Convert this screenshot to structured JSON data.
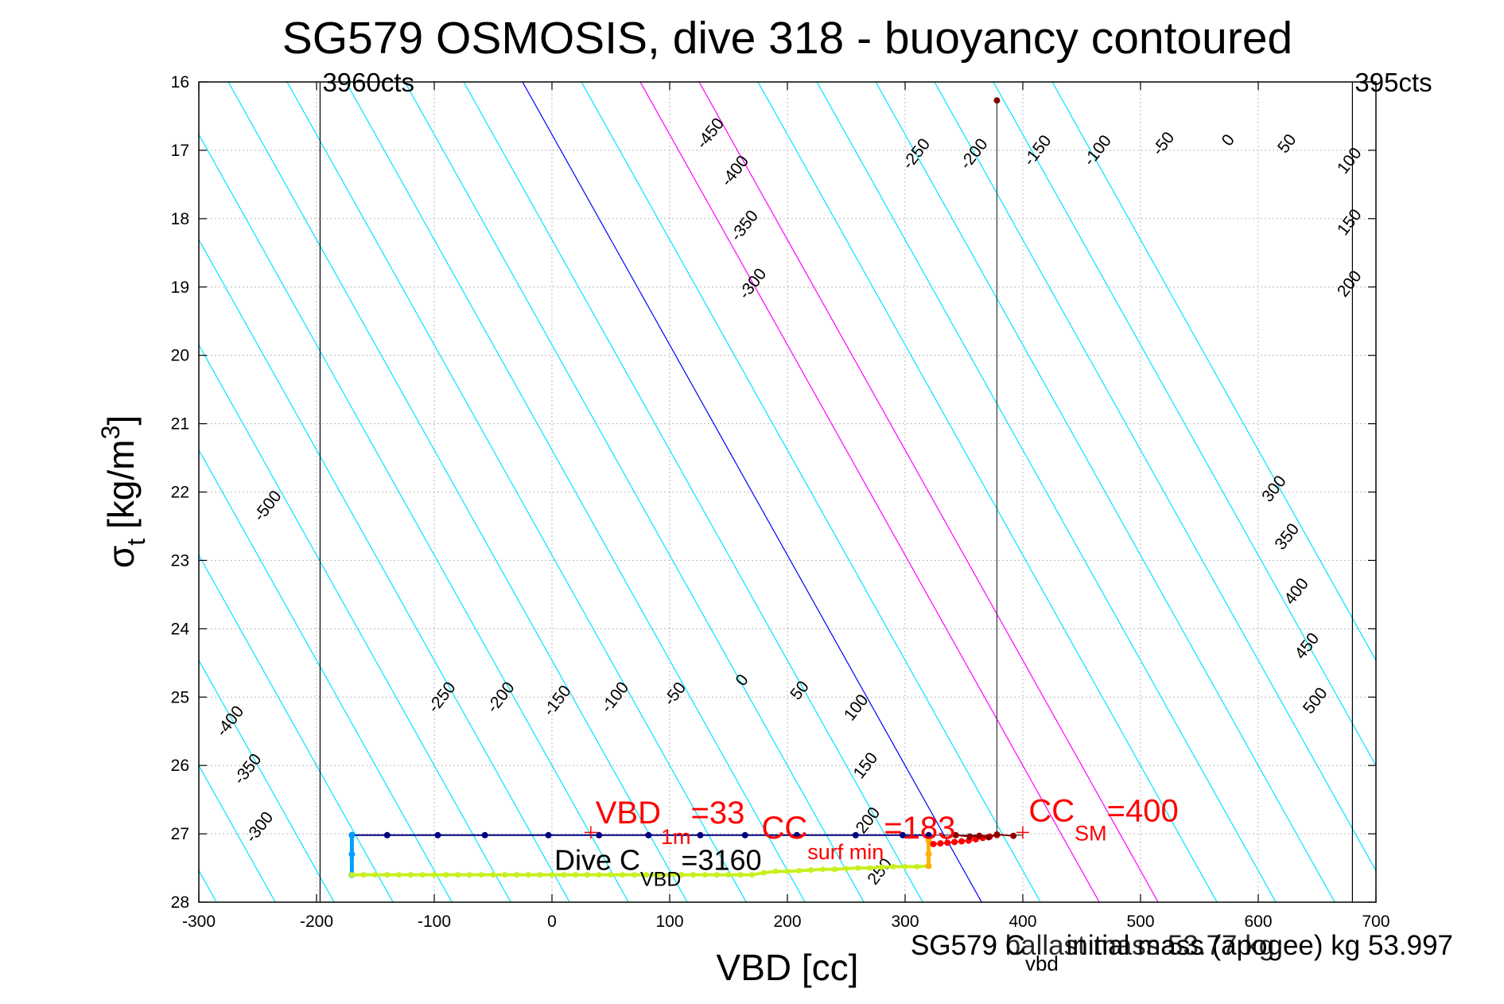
{
  "chart_data": {
    "type": "line",
    "title": "SG579 OSMOSIS, dive 318 - buoyancy contoured",
    "xlabel": "VBD [cc]",
    "ylabel_symbol": "σ",
    "ylabel_sub": "t",
    "ylabel_unit": "[kg/m",
    "ylabel_sup": "3",
    "ylabel_close": "]",
    "xlim": [
      -300,
      700
    ],
    "ylim": [
      16,
      28
    ],
    "y_reversed": true,
    "grid": true,
    "x_ticks": [
      -300,
      -200,
      -100,
      0,
      100,
      200,
      300,
      400,
      500,
      600,
      700
    ],
    "y_ticks": [
      16,
      17,
      18,
      19,
      20,
      21,
      22,
      23,
      24,
      25,
      26,
      27,
      28
    ],
    "colors": {
      "contour": "#00e5ff",
      "zero_contour": "#0000ff",
      "magenta_contours": "#ff00ff",
      "annotation": "#ff0000",
      "apogee_line": "#7a0000"
    },
    "contour_slope_vbd_per_sigma": 32.5,
    "contour_spacing_vbd": 50,
    "contour_offsets": [
      -975,
      -925,
      -875,
      -825,
      -775,
      -725,
      -675,
      -625,
      -575,
      -525,
      -475,
      -425,
      -375,
      -325,
      -275,
      -225,
      -175,
      -125,
      -75,
      -25,
      25,
      75,
      125,
      175,
      225,
      275,
      325,
      375,
      425
    ],
    "zero_contour_offset": -25,
    "magenta_contour_offsets": [
      75,
      125
    ],
    "contour_labels": [
      {
        "text": "-450",
        "vbd": 138,
        "sigma": 16.8
      },
      {
        "text": "-400",
        "vbd": 159,
        "sigma": 17.35
      },
      {
        "text": "-350",
        "vbd": 167,
        "sigma": 18.15
      },
      {
        "text": "-300",
        "vbd": 174,
        "sigma": 19.0
      },
      {
        "text": "-250",
        "vbd": 313,
        "sigma": 17.1
      },
      {
        "text": "-200",
        "vbd": 362,
        "sigma": 17.1
      },
      {
        "text": "-150",
        "vbd": 416,
        "sigma": 17.05
      },
      {
        "text": "-100",
        "vbd": 467,
        "sigma": 17.05
      },
      {
        "text": "-50",
        "vbd": 523,
        "sigma": 16.95
      },
      {
        "text": "0",
        "vbd": 578,
        "sigma": 16.9
      },
      {
        "text": "50",
        "vbd": 628,
        "sigma": 16.95
      },
      {
        "text": "100",
        "vbd": 681,
        "sigma": 17.2
      },
      {
        "text": "150",
        "vbd": 681,
        "sigma": 18.1
      },
      {
        "text": "200",
        "vbd": 681,
        "sigma": 19.0
      },
      {
        "text": "-500",
        "vbd": -238,
        "sigma": 22.25
      },
      {
        "text": "300",
        "vbd": 617,
        "sigma": 22.0
      },
      {
        "text": "350",
        "vbd": 628,
        "sigma": 22.7
      },
      {
        "text": "400",
        "vbd": 636,
        "sigma": 23.5
      },
      {
        "text": "450",
        "vbd": 645,
        "sigma": 24.3
      },
      {
        "text": "500",
        "vbd": 652,
        "sigma": 25.1
      },
      {
        "text": "-400",
        "vbd": -270,
        "sigma": 25.4
      },
      {
        "text": "-350",
        "vbd": -255,
        "sigma": 26.1
      },
      {
        "text": "-300",
        "vbd": -245,
        "sigma": 26.95
      },
      {
        "text": "-250",
        "vbd": -90,
        "sigma": 25.05
      },
      {
        "text": "-200",
        "vbd": -40,
        "sigma": 25.05
      },
      {
        "text": "-150",
        "vbd": 8,
        "sigma": 25.1
      },
      {
        "text": "-100",
        "vbd": 57,
        "sigma": 25.05
      },
      {
        "text": "-50",
        "vbd": 108,
        "sigma": 25.0
      },
      {
        "text": "0",
        "vbd": 165,
        "sigma": 24.8
      },
      {
        "text": "50",
        "vbd": 214,
        "sigma": 24.95
      },
      {
        "text": "100",
        "vbd": 262,
        "sigma": 25.2
      },
      {
        "text": "150",
        "vbd": 270,
        "sigma": 26.05
      },
      {
        "text": "200",
        "vbd": 272,
        "sigma": 26.85
      },
      {
        "text": "250",
        "vbd": 282,
        "sigma": 27.6
      }
    ],
    "count_markers": [
      {
        "text": "3960cts",
        "vbd": -197
      },
      {
        "text": "395cts",
        "vbd": 680
      }
    ],
    "series": [
      {
        "x": [
          -170,
          -140,
          -97,
          -57,
          -3,
          40,
          82,
          126,
          164,
          208,
          258,
          298,
          320
        ],
        "y": [
          27.02,
          27.02,
          27.02,
          27.02,
          27.02,
          27.02,
          27.02,
          27.02,
          27.02,
          27.02,
          27.02,
          27.02,
          27.02
        ],
        "color": "#000080"
      },
      {
        "x": [
          -170,
          -170,
          -170
        ],
        "y": [
          27.02,
          27.3,
          27.6
        ],
        "color": "#00a0ff"
      },
      {
        "x": [
          -170,
          -160,
          -150,
          -140,
          -130,
          -120,
          -110,
          -100,
          -90,
          -80,
          -70,
          -60,
          -50,
          -40,
          -30,
          -20,
          -10,
          0,
          10,
          20,
          30,
          40,
          50,
          60,
          70,
          80,
          90,
          100,
          110,
          120,
          130,
          140,
          150,
          160,
          170,
          180,
          190,
          200,
          210,
          220,
          230,
          240,
          250,
          260,
          270,
          280,
          290,
          300,
          310,
          320
        ],
        "y": [
          27.6,
          27.6,
          27.6,
          27.6,
          27.6,
          27.6,
          27.6,
          27.6,
          27.6,
          27.6,
          27.6,
          27.6,
          27.6,
          27.6,
          27.6,
          27.6,
          27.6,
          27.6,
          27.6,
          27.6,
          27.6,
          27.6,
          27.6,
          27.6,
          27.6,
          27.6,
          27.6,
          27.6,
          27.6,
          27.6,
          27.6,
          27.6,
          27.6,
          27.6,
          27.6,
          27.57,
          27.55,
          27.55,
          27.54,
          27.53,
          27.52,
          27.52,
          27.51,
          27.5,
          27.5,
          27.49,
          27.48,
          27.48,
          27.48,
          27.47
        ],
        "color": "#c8f020"
      },
      {
        "x": [
          320,
          320,
          320
        ],
        "y": [
          27.47,
          27.3,
          27.1
        ],
        "color": "#ffb000"
      },
      {
        "x": [
          324,
          330,
          336,
          342,
          348,
          354,
          360,
          366,
          372,
          378
        ],
        "y": [
          27.15,
          27.14,
          27.13,
          27.12,
          27.11,
          27.1,
          27.08,
          27.06,
          27.04,
          27.02
        ],
        "color": "#ff0000"
      },
      {
        "x": [
          343,
          355,
          363,
          371,
          378,
          392
        ],
        "y": [
          27.02,
          27.04,
          27.03,
          27.05,
          27.01,
          27.03
        ],
        "color": "#8b0000"
      }
    ],
    "apogee_line": {
      "vbd": 378,
      "sigma_top": 16.27,
      "sigma_bottom": 27.0
    },
    "reference_markers": [
      {
        "vbd": 33,
        "sigma": 26.98
      },
      {
        "vbd": 400,
        "sigma": 26.98
      }
    ],
    "annotations": {
      "vbd1m": {
        "main": "VBD",
        "sub": "1m",
        "rest": "=33",
        "vbd": 37,
        "sigma": 26.85
      },
      "cc_surf": {
        "main": "CC",
        "sub": "surf min",
        "rest": "=183",
        "vbd": 178,
        "sigma": 27.07
      },
      "cc_sm": {
        "main": "CC",
        "sub": "SM",
        "rest": "=400",
        "vbd": 405,
        "sigma": 26.82
      },
      "dive_c": {
        "main": "Dive C",
        "sub": "VBD",
        "rest": "=3160",
        "vbd": 2,
        "sigma": 27.53
      }
    },
    "footer": {
      "text_a": "SG579 C",
      "sub": "vbd",
      "text_b": " initial mass (apogee) kg 53.997",
      "overprint": "SG579 ballast mass 53.77 kg"
    }
  }
}
